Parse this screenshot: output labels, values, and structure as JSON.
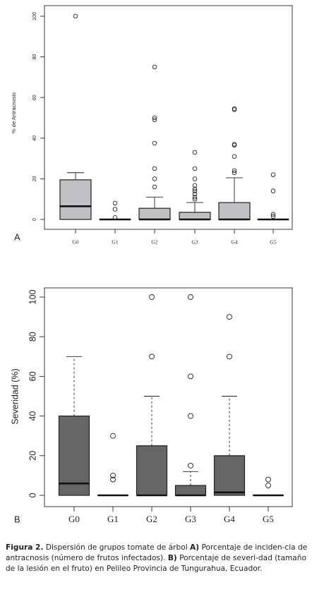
{
  "chart_data": [
    {
      "type": "box",
      "panel_label": "A",
      "ylabel": "% de Antracnosis",
      "xlabel": "",
      "ylim": [
        0,
        100
      ],
      "yticks": [
        0,
        20,
        40,
        60,
        80,
        100
      ],
      "categories": [
        "G0",
        "G1",
        "G2",
        "G3",
        "G4",
        "G5"
      ],
      "grid": false,
      "legend": "none",
      "box_color": "#bfbfc4",
      "boxes": [
        {
          "group": "G0",
          "q1": 0,
          "median": 6.5,
          "q3": 19.5,
          "whisker_low": 0,
          "whisker_high": 23,
          "outliers": [
            100
          ]
        },
        {
          "group": "G1",
          "q1": 0,
          "median": 0,
          "q3": 0,
          "whisker_low": 0,
          "whisker_high": 0,
          "outliers": [
            1,
            5,
            8
          ]
        },
        {
          "group": "G2",
          "q1": 0,
          "median": 0,
          "q3": 5.5,
          "whisker_low": 0,
          "whisker_high": 11,
          "outliers": [
            16,
            20,
            25,
            37.5,
            49,
            50,
            75
          ]
        },
        {
          "group": "G3",
          "q1": 0,
          "median": 0,
          "q3": 3.5,
          "whisker_low": 0,
          "whisker_high": 8.3,
          "outliers": [
            10,
            11,
            12.5,
            14,
            15,
            16.7,
            20,
            25,
            33
          ]
        },
        {
          "group": "G4",
          "q1": 0,
          "median": 0,
          "q3": 8.3,
          "whisker_low": 0,
          "whisker_high": 20.5,
          "outliers": [
            23,
            24,
            31,
            36.5,
            37,
            54,
            54.5
          ]
        },
        {
          "group": "G5",
          "q1": 0,
          "median": 0,
          "q3": 0,
          "whisker_low": 0,
          "whisker_high": 0,
          "outliers": [
            1.5,
            2.5,
            14,
            22
          ]
        }
      ]
    },
    {
      "type": "box",
      "panel_label": "B",
      "ylabel": "Severidad (%)",
      "xlabel": "",
      "ylim": [
        0,
        100
      ],
      "yticks": [
        0,
        20,
        40,
        60,
        80,
        100
      ],
      "categories": [
        "G0",
        "G1",
        "G2",
        "G3",
        "G4",
        "G5"
      ],
      "grid": false,
      "legend": "none",
      "box_color": "#666666",
      "boxes": [
        {
          "group": "G0",
          "q1": 0,
          "median": 6,
          "q3": 40,
          "whisker_low": 0,
          "whisker_high": 70,
          "outliers": []
        },
        {
          "group": "G1",
          "q1": 0,
          "median": 0,
          "q3": 0,
          "whisker_low": 0,
          "whisker_high": 0,
          "outliers": [
            8,
            10,
            30
          ]
        },
        {
          "group": "G2",
          "q1": 0,
          "median": 0,
          "q3": 25,
          "whisker_low": 0,
          "whisker_high": 50,
          "outliers": [
            70,
            100
          ]
        },
        {
          "group": "G3",
          "q1": 0,
          "median": 0,
          "q3": 5,
          "whisker_low": 0,
          "whisker_high": 12,
          "outliers": [
            15,
            40,
            60,
            100
          ]
        },
        {
          "group": "G4",
          "q1": 0,
          "median": 1.5,
          "q3": 20,
          "whisker_low": 0,
          "whisker_high": 50,
          "outliers": [
            70,
            90
          ]
        },
        {
          "group": "G5",
          "q1": 0,
          "median": 0,
          "q3": 0,
          "whisker_low": 0,
          "whisker_high": 0,
          "outliers": [
            5,
            8
          ]
        }
      ]
    }
  ],
  "caption": {
    "figure_label": "Figura 2.",
    "text_1": " Dispersión de grupos tomate de árbol ",
    "label_a": "A)",
    "text_2": " Porcentaje de inciden-cia de antracnosis (número de frutos infectados). ",
    "label_b": "B)",
    "text_3": " Porcentaje de severi-dad (tamaño de la lesión en el fruto) en Pelileo Provincia de Tungurahua, Ecuador."
  }
}
